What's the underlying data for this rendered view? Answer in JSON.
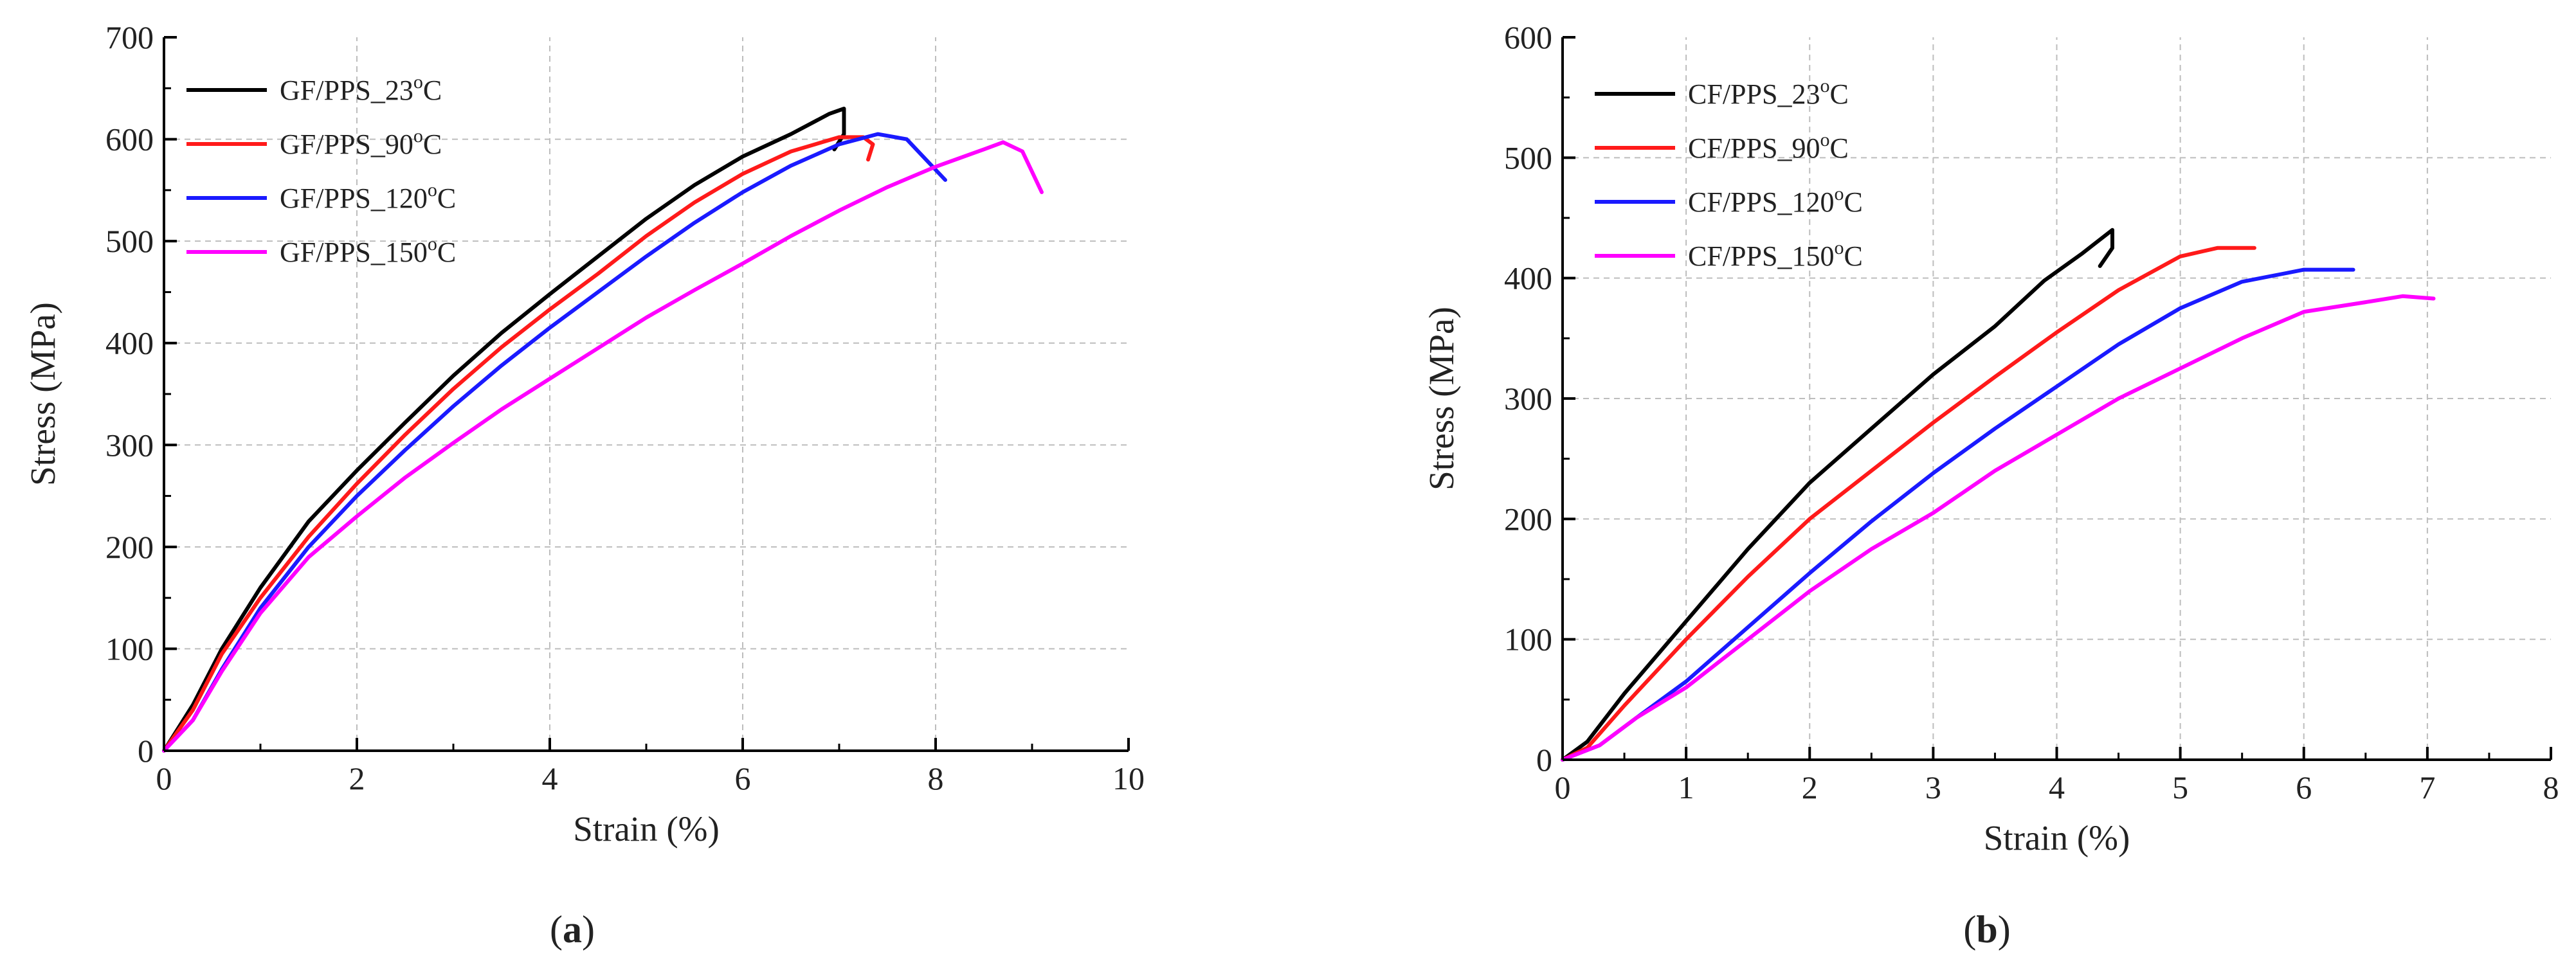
{
  "chart_data": [
    {
      "panel": "a",
      "type": "line",
      "panel_label": "a",
      "xlabel": "Strain (%)",
      "ylabel": "Stress (MPa)",
      "xlim": [
        0,
        10
      ],
      "ylim": [
        0,
        700
      ],
      "xticks": [
        0,
        2,
        4,
        6,
        8,
        10
      ],
      "yticks": [
        0,
        100,
        200,
        300,
        400,
        500,
        600,
        700
      ],
      "grid": true,
      "legend_position": "top-left",
      "series": [
        {
          "name": "GF/PPS_23°C",
          "label_prefix": "GF/PPS_23",
          "color": "#000000",
          "x": [
            0,
            0.3,
            0.6,
            1.0,
            1.5,
            2.0,
            2.5,
            3.0,
            3.5,
            4.0,
            4.5,
            5.0,
            5.5,
            6.0,
            6.5,
            6.9,
            7.05,
            7.05,
            6.95
          ],
          "y": [
            0,
            45,
            100,
            160,
            225,
            275,
            322,
            368,
            410,
            448,
            485,
            522,
            555,
            583,
            605,
            625,
            630,
            605,
            590
          ]
        },
        {
          "name": "GF/PPS_90°C",
          "label_prefix": "GF/PPS_90",
          "color": "#ff1a1a",
          "x": [
            0,
            0.3,
            0.6,
            1.0,
            1.5,
            2.0,
            2.5,
            3.0,
            3.5,
            4.0,
            4.5,
            5.0,
            5.5,
            6.0,
            6.5,
            7.0,
            7.25,
            7.35,
            7.3
          ],
          "y": [
            0,
            40,
            95,
            150,
            210,
            262,
            310,
            355,
            396,
            433,
            468,
            505,
            538,
            566,
            588,
            602,
            602,
            595,
            580
          ]
        },
        {
          "name": "GF/PPS_120°C",
          "label_prefix": "GF/PPS_120",
          "color": "#1a1aff",
          "x": [
            0,
            0.3,
            0.6,
            1.0,
            1.5,
            2.0,
            2.5,
            3.0,
            3.5,
            4.0,
            4.5,
            5.0,
            5.5,
            6.0,
            6.5,
            7.0,
            7.4,
            7.7,
            7.9,
            8.1
          ],
          "y": [
            0,
            30,
            80,
            140,
            200,
            250,
            295,
            338,
            378,
            415,
            450,
            485,
            518,
            548,
            574,
            595,
            605,
            600,
            580,
            560
          ]
        },
        {
          "name": "GF/PPS_150°C",
          "label_prefix": "GF/PPS_150",
          "color": "#ff00ff",
          "x": [
            0,
            0.3,
            0.6,
            1.0,
            1.5,
            2.0,
            2.5,
            3.0,
            3.5,
            4.0,
            4.5,
            5.0,
            5.5,
            6.0,
            6.5,
            7.0,
            7.5,
            8.0,
            8.5,
            8.7,
            8.9,
            9.1
          ],
          "y": [
            0,
            30,
            78,
            135,
            190,
            230,
            268,
            302,
            335,
            365,
            395,
            425,
            452,
            478,
            505,
            530,
            553,
            573,
            590,
            597,
            588,
            548
          ]
        }
      ]
    },
    {
      "panel": "b",
      "type": "line",
      "panel_label": "b",
      "xlabel": "Strain (%)",
      "ylabel": "Stress (MPa)",
      "xlim": [
        0,
        8
      ],
      "ylim": [
        0,
        600
      ],
      "xticks": [
        0,
        1,
        2,
        3,
        4,
        5,
        6,
        7,
        8
      ],
      "yticks": [
        0,
        100,
        200,
        300,
        400,
        500,
        600
      ],
      "grid": true,
      "legend_position": "top-left",
      "series": [
        {
          "name": "CF/PPS_23°C",
          "label_prefix": "CF/PPS_23",
          "color": "#000000",
          "x": [
            0,
            0.2,
            0.5,
            1.0,
            1.5,
            2.0,
            2.5,
            3.0,
            3.5,
            3.9,
            4.2,
            4.45,
            4.45,
            4.35
          ],
          "y": [
            0,
            15,
            55,
            115,
            175,
            230,
            275,
            320,
            360,
            398,
            420,
            440,
            425,
            410
          ]
        },
        {
          "name": "CF/PPS_90°C",
          "label_prefix": "CF/PPS_90",
          "color": "#ff1a1a",
          "x": [
            0,
            0.2,
            0.5,
            1.0,
            1.5,
            2.0,
            2.5,
            3.0,
            3.5,
            4.0,
            4.5,
            5.0,
            5.3,
            5.6
          ],
          "y": [
            0,
            10,
            45,
            100,
            152,
            200,
            240,
            280,
            318,
            355,
            390,
            418,
            425,
            425
          ]
        },
        {
          "name": "CF/PPS_120°C",
          "label_prefix": "CF/PPS_120",
          "color": "#1a1aff",
          "x": [
            0,
            0.3,
            0.6,
            1.0,
            1.5,
            2.0,
            2.5,
            3.0,
            3.5,
            4.0,
            4.5,
            5.0,
            5.5,
            6.0,
            6.4
          ],
          "y": [
            0,
            12,
            35,
            65,
            110,
            155,
            198,
            238,
            275,
            310,
            345,
            375,
            397,
            407,
            407
          ]
        },
        {
          "name": "CF/PPS_150°C",
          "label_prefix": "CF/PPS_150",
          "color": "#ff00ff",
          "x": [
            0,
            0.3,
            0.6,
            1.0,
            1.5,
            2.0,
            2.5,
            3.0,
            3.5,
            4.0,
            4.5,
            5.0,
            5.5,
            6.0,
            6.5,
            6.8,
            7.05
          ],
          "y": [
            0,
            12,
            35,
            60,
            100,
            140,
            175,
            205,
            240,
            270,
            300,
            325,
            350,
            372,
            380,
            385,
            383
          ]
        }
      ]
    }
  ]
}
